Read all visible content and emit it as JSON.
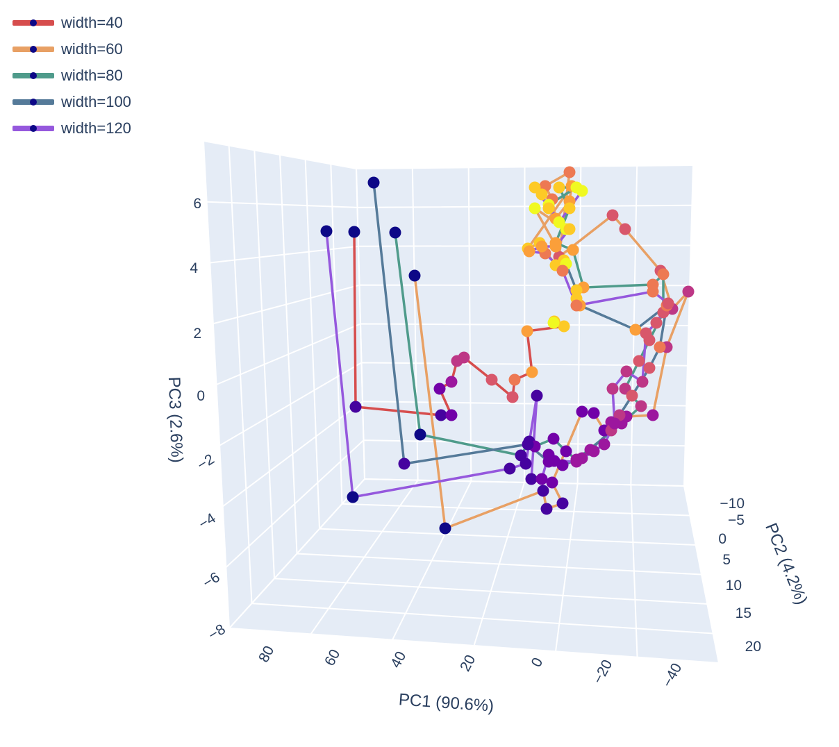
{
  "chart_data": {
    "type": "scatter3d",
    "legend_placement": "top-left",
    "axes": {
      "x": {
        "title": "PC1 (90.6%)",
        "ticks": [
          "80",
          "60",
          "40",
          "20",
          "0",
          "−20",
          "−40"
        ]
      },
      "y": {
        "title": "PC2 (4.2%)",
        "ticks": [
          "−10",
          "−5",
          "0",
          "5",
          "10",
          "15",
          "20"
        ]
      },
      "z": {
        "title": "PC3 (2.6%)",
        "ticks": [
          "6",
          "4",
          "2",
          "0",
          "−2",
          "−4",
          "−6",
          "−8"
        ]
      }
    },
    "series": [
      {
        "name": "width=40",
        "color": "#d64d4d"
      },
      {
        "name": "width=60",
        "color": "#e8a064"
      },
      {
        "name": "width=80",
        "color": "#4f9b8b"
      },
      {
        "name": "width=100",
        "color": "#557a99"
      },
      {
        "name": "width=120",
        "color": "#9558dd"
      }
    ],
    "marker_colorscale": [
      "#0d0887",
      "#46039f",
      "#7201a8",
      "#9c179e",
      "#bd3786",
      "#d8576b",
      "#ed7953",
      "#fb9f3a",
      "#fdca26",
      "#f0f921"
    ]
  }
}
